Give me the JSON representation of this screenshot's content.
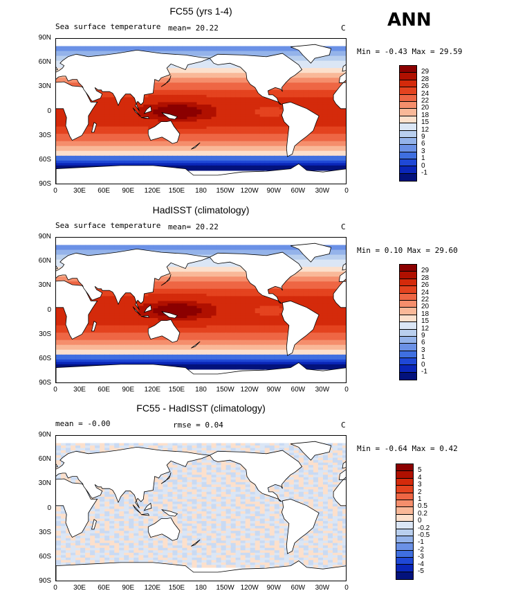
{
  "season": "ANN",
  "panels": [
    {
      "title": "FC55 (yrs 1-4)",
      "left_label": "Sea surface temperature",
      "mid_label": "mean=   20.22",
      "unit": "C",
      "minmax": "Min =  -0.43 Max =  29.59",
      "colorbar_levels": [
        "29",
        "28",
        "26",
        "24",
        "22",
        "20",
        "18",
        "15",
        "12",
        "9",
        "6",
        "3",
        "1",
        "0",
        "-1"
      ],
      "kind": "sst"
    },
    {
      "title": "HadISST (climatology)",
      "left_label": "Sea surface temperature",
      "mid_label": "mean=   20.22",
      "unit": "C",
      "minmax": "Min =   0.10 Max =  29.60",
      "colorbar_levels": [
        "29",
        "28",
        "26",
        "24",
        "22",
        "20",
        "18",
        "15",
        "12",
        "9",
        "6",
        "3",
        "1",
        "0",
        "-1"
      ],
      "kind": "sst"
    },
    {
      "title": "FC55 - HadISST (climatology)",
      "left_label": "mean =   -0.00",
      "mid_label": "rmse =    0.04",
      "unit": "C",
      "minmax": "Min =  -0.64 Max =   0.42",
      "colorbar_levels": [
        "5",
        "4",
        "3",
        "2",
        "1",
        "0.5",
        "0.2",
        "0",
        "-0.2",
        "-0.5",
        "-1",
        "-2",
        "-3",
        "-4",
        "-5"
      ],
      "kind": "diff"
    }
  ],
  "lat_labels": [
    "90N",
    "60N",
    "30N",
    "0",
    "30S",
    "60S",
    "90S"
  ],
  "lon_labels": [
    "0",
    "30E",
    "60E",
    "90E",
    "120E",
    "150E",
    "180",
    "150W",
    "120W",
    "90W",
    "60W",
    "30W",
    "0"
  ],
  "sst_colors": [
    "#8b0000",
    "#b01000",
    "#d42a0b",
    "#e4431f",
    "#ee6644",
    "#f58e6c",
    "#f9b898",
    "#fce0cc",
    "#dbe6f5",
    "#b9cfee",
    "#94b3ea",
    "#6b91e6",
    "#3f6fe0",
    "#1f48d6",
    "#0a26b8",
    "#03127c"
  ],
  "diff_colors": [
    "#8b0000",
    "#b01000",
    "#d42a0b",
    "#e4431f",
    "#ee6644",
    "#f58e6c",
    "#f9b898",
    "#fce0cc",
    "#dbe6f5",
    "#b9cfee",
    "#94b3ea",
    "#6b91e6",
    "#3f6fe0",
    "#1f48d6",
    "#0a26b8",
    "#03127c"
  ]
}
